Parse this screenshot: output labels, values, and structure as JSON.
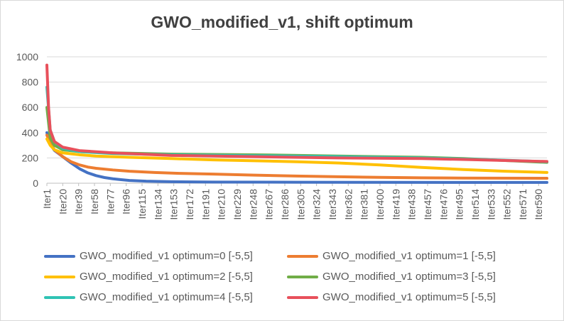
{
  "chart_data": {
    "type": "line",
    "title": "GWO_modified_v1, shift optimum",
    "xlabel": "",
    "ylabel": "",
    "ylim": [
      0,
      1000
    ],
    "yticks": [
      0,
      200,
      400,
      600,
      800,
      1000
    ],
    "xcount": 600,
    "xticklabels": [
      "Iter1",
      "Iter20",
      "Iter39",
      "Iter58",
      "Iter77",
      "Iter96",
      "Iter115",
      "Iter134",
      "Iter153",
      "Iter172",
      "Iter191",
      "Iter210",
      "Iter229",
      "Iter248",
      "Iter267",
      "Iter286",
      "Iter305",
      "Iter324",
      "Iter343",
      "Iter362",
      "Iter381",
      "Iter400",
      "Iter419",
      "Iter438",
      "Iter457",
      "Iter476",
      "Iter495",
      "Iter514",
      "Iter533",
      "Iter552",
      "Iter571",
      "Iter590"
    ],
    "grid": "horizontal",
    "legend_position": "bottom",
    "series": [
      {
        "name": "GWO_modified_v1 optimum=0 [-5,5]",
        "color": "#4472C4",
        "points": [
          [
            1,
            400
          ],
          [
            5,
            310
          ],
          [
            10,
            260
          ],
          [
            20,
            210
          ],
          [
            30,
            160
          ],
          [
            40,
            115
          ],
          [
            50,
            82
          ],
          [
            60,
            60
          ],
          [
            70,
            45
          ],
          [
            80,
            35
          ],
          [
            90,
            28
          ],
          [
            100,
            22
          ],
          [
            120,
            16
          ],
          [
            150,
            12
          ],
          [
            200,
            9
          ],
          [
            300,
            8
          ],
          [
            400,
            7
          ],
          [
            500,
            6
          ],
          [
            600,
            6
          ]
        ]
      },
      {
        "name": "GWO_modified_v1 optimum=1 [-5,5]",
        "color": "#ED7D31",
        "points": [
          [
            1,
            380
          ],
          [
            5,
            320
          ],
          [
            10,
            265
          ],
          [
            20,
            210
          ],
          [
            30,
            170
          ],
          [
            40,
            145
          ],
          [
            50,
            128
          ],
          [
            60,
            118
          ],
          [
            80,
            105
          ],
          [
            100,
            95
          ],
          [
            130,
            85
          ],
          [
            160,
            78
          ],
          [
            200,
            72
          ],
          [
            250,
            64
          ],
          [
            300,
            57
          ],
          [
            350,
            51
          ],
          [
            400,
            46
          ],
          [
            450,
            43
          ],
          [
            500,
            41
          ],
          [
            550,
            40
          ],
          [
            600,
            39
          ]
        ]
      },
      {
        "name": "GWO_modified_v1 optimum=2 [-5,5]",
        "color": "#FFC000",
        "points": [
          [
            1,
            350
          ],
          [
            5,
            300
          ],
          [
            10,
            265
          ],
          [
            20,
            240
          ],
          [
            40,
            225
          ],
          [
            60,
            215
          ],
          [
            100,
            205
          ],
          [
            150,
            195
          ],
          [
            200,
            185
          ],
          [
            250,
            178
          ],
          [
            300,
            170
          ],
          [
            350,
            160
          ],
          [
            400,
            145
          ],
          [
            450,
            125
          ],
          [
            500,
            108
          ],
          [
            550,
            95
          ],
          [
            600,
            85
          ]
        ]
      },
      {
        "name": "GWO_modified_v1 optimum=3 [-5,5]",
        "color": "#70AD47",
        "points": [
          [
            1,
            600
          ],
          [
            5,
            360
          ],
          [
            10,
            300
          ],
          [
            20,
            265
          ],
          [
            40,
            250
          ],
          [
            80,
            240
          ],
          [
            150,
            230
          ],
          [
            250,
            225
          ],
          [
            350,
            215
          ],
          [
            450,
            205
          ],
          [
            500,
            195
          ],
          [
            550,
            180
          ],
          [
            600,
            165
          ]
        ]
      },
      {
        "name": "GWO_modified_v1 optimum=4 [-5,5]",
        "color": "#2FC3B4",
        "points": [
          [
            1,
            760
          ],
          [
            5,
            420
          ],
          [
            10,
            330
          ],
          [
            20,
            275
          ],
          [
            40,
            250
          ],
          [
            80,
            235
          ],
          [
            150,
            225
          ],
          [
            250,
            218
          ],
          [
            350,
            210
          ],
          [
            450,
            200
          ],
          [
            500,
            192
          ],
          [
            550,
            182
          ],
          [
            600,
            170
          ]
        ]
      },
      {
        "name": "GWO_modified_v1 optimum=5 [-5,5]",
        "color": "#E8505B",
        "points": [
          [
            1,
            935
          ],
          [
            3,
            600
          ],
          [
            5,
            420
          ],
          [
            10,
            330
          ],
          [
            20,
            285
          ],
          [
            40,
            258
          ],
          [
            80,
            240
          ],
          [
            150,
            220
          ],
          [
            250,
            210
          ],
          [
            350,
            200
          ],
          [
            450,
            195
          ],
          [
            500,
            188
          ],
          [
            550,
            180
          ],
          [
            600,
            172
          ]
        ]
      }
    ]
  }
}
